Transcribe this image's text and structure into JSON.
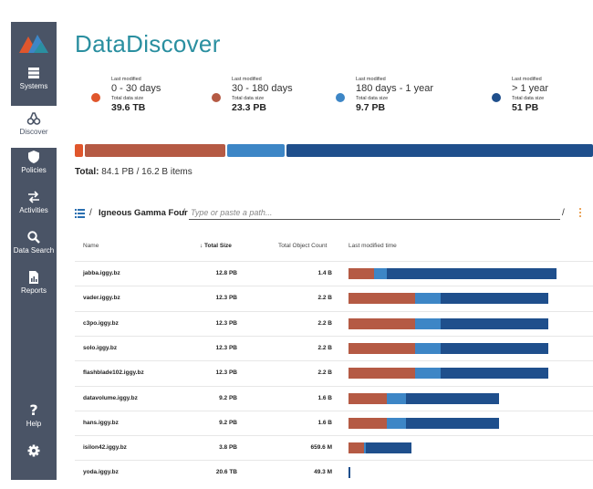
{
  "colors": {
    "sidebar": "#4a5466",
    "brand": "#2a8fa0",
    "orange": "#e0562c",
    "rust": "#b55a44",
    "midblue": "#3d86c6",
    "darkblue": "#1f4f8c",
    "kebab": "#e58a2a"
  },
  "sidebar": {
    "items": [
      {
        "label": "Systems",
        "icon": "server-icon",
        "active": false
      },
      {
        "label": "Discover",
        "icon": "binoculars-icon",
        "active": true
      },
      {
        "label": "Policies",
        "icon": "shield-icon",
        "active": false
      },
      {
        "label": "Activities",
        "icon": "arrows-exchange-icon",
        "active": false
      },
      {
        "label": "Data Search",
        "icon": "search-icon",
        "active": false
      },
      {
        "label": "Reports",
        "icon": "report-icon",
        "active": false
      }
    ],
    "help_label": "Help",
    "settings_icon": "gear-icon"
  },
  "header": {
    "title": "DataDiscover"
  },
  "legend": [
    {
      "last_modified_label": "Last modified",
      "range": "0 - 30 days",
      "size_label": "Total data size",
      "size": "39.6 TB",
      "color": "#e0562c"
    },
    {
      "last_modified_label": "Last modified",
      "range": "30 - 180 days",
      "size_label": "Total data size",
      "size": "23.3 PB",
      "color": "#b55a44"
    },
    {
      "last_modified_label": "Last modified",
      "range": "180 days - 1 year",
      "size_label": "Total data size",
      "size": "9.7 PB",
      "color": "#3d86c6"
    },
    {
      "last_modified_label": "Last modified",
      "range": "> 1 year",
      "size_label": "Total data size",
      "size": "51 PB",
      "color": "#1f4f8c"
    }
  ],
  "total": {
    "label": "Total:",
    "value": "84.1 PB / 16.2 B items"
  },
  "path": {
    "separator": "/",
    "root": "Igneous Gamma Four",
    "placeholder": "Type or paste a path...",
    "trailing_separator": "/"
  },
  "table": {
    "columns": {
      "name": "Name",
      "total_size": "↓ Total Size",
      "object_count": "Total Object Count",
      "last_modified": "Last modified time"
    },
    "rows": [
      {
        "name": "jabba.iggy.bz",
        "size": "12.8 PB",
        "count": "1.4 B",
        "split": [
          0.0,
          0.027,
          0.0,
          0.031,
          0.0,
          0.164,
          0.0,
          0.79
        ]
      },
      {
        "name": "vader.iggy.bz",
        "size": "12.3 PB",
        "count": "2.2 B"
      },
      {
        "name": "c3po.iggy.bz",
        "size": "12.3 PB",
        "count": "2.2 B"
      },
      {
        "name": "solo.iggy.bz",
        "size": "12.3 PB",
        "count": "2.2 B"
      },
      {
        "name": "flashblade102.iggy.bz",
        "size": "12.3 PB",
        "count": "2.2 B"
      },
      {
        "name": "datavolume.iggy.bz",
        "size": "9.2 PB",
        "count": "1.6 B"
      },
      {
        "name": "hans.iggy.bz",
        "size": "9.2 PB",
        "count": "1.6 B"
      },
      {
        "name": "isilon42.iggy.bz",
        "size": "3.8 PB",
        "count": "659.6 M"
      },
      {
        "name": "yoda.iggy.bz",
        "size": "20.6 TB",
        "count": "49.3 M"
      }
    ]
  }
}
